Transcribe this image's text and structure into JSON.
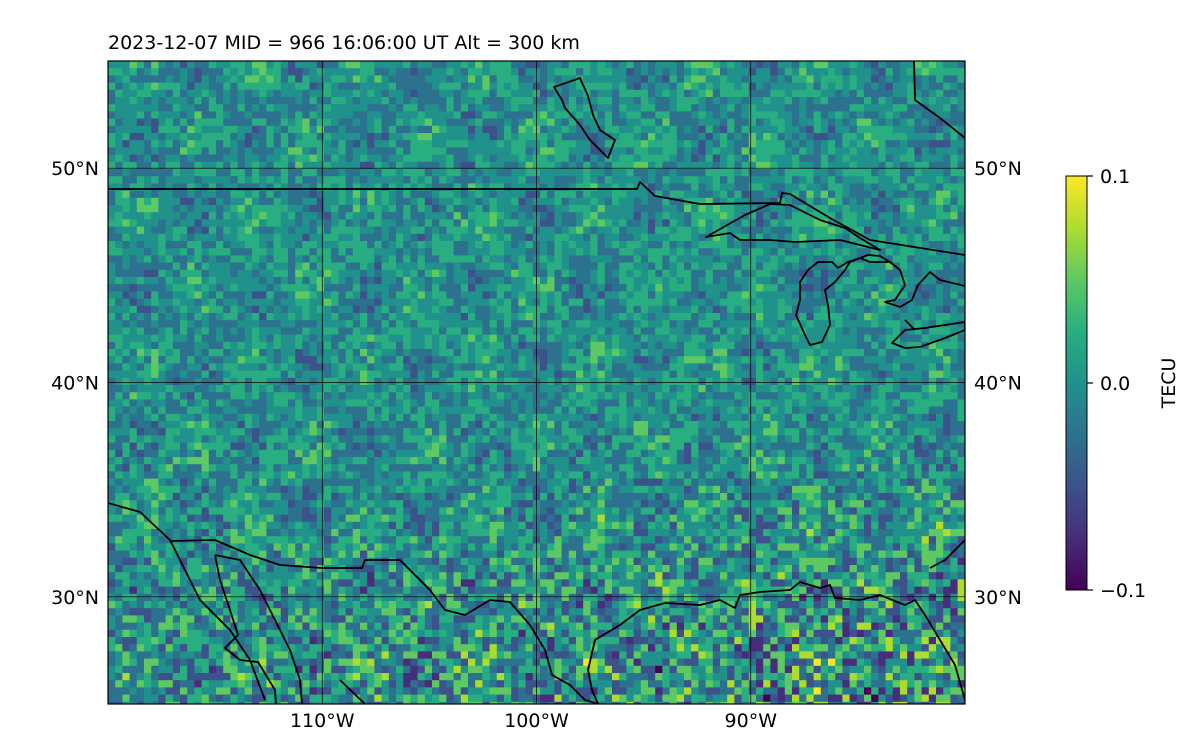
{
  "title": "2023-12-07  MID = 966    16:06:00  UT  Alt = 300 km",
  "map": {
    "lon_range": [
      -120,
      -80
    ],
    "lat_range": [
      25,
      55
    ],
    "lon_ticks": [
      {
        "value": -110,
        "label": "110°W"
      },
      {
        "value": -100,
        "label": "100°W"
      },
      {
        "value": -90,
        "label": "90°W"
      }
    ],
    "lat_ticks": [
      {
        "value": 50,
        "label": "50°N"
      },
      {
        "value": 40,
        "label": "40°N"
      },
      {
        "value": 30,
        "label": "30°N"
      }
    ],
    "grid": true,
    "boundaries": "coastlines and country borders",
    "field": "TEC perturbation grid (noise-like pattern, stronger variability in southeast)"
  },
  "colorbar": {
    "label": "TECU",
    "colormap": "viridis",
    "min": -0.1,
    "max": 0.1,
    "ticks": [
      {
        "value": 0.1,
        "label": "0.1"
      },
      {
        "value": 0.0,
        "label": "0.0"
      },
      {
        "value": -0.1,
        "label": "−0.1"
      }
    ]
  }
}
